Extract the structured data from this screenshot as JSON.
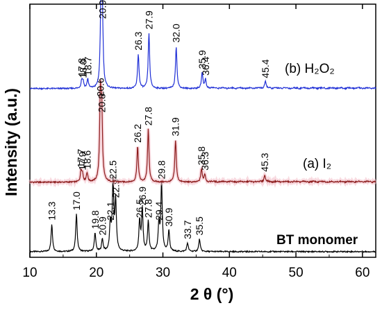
{
  "chart_data": {
    "type": "line",
    "xlabel": "2 θ (°)",
    "ylabel": "Intensity (a.u.)",
    "xlim": [
      10,
      62
    ],
    "xticks": [
      10,
      20,
      30,
      40,
      50,
      60
    ],
    "series": [
      {
        "name": "BT monomer",
        "color": "#000000",
        "peaks": [
          {
            "x": 13.3,
            "h": 0.22
          },
          {
            "x": 17.0,
            "h": 0.3
          },
          {
            "x": 19.8,
            "h": 0.15
          },
          {
            "x": 20.9,
            "h": 0.1
          },
          {
            "x": 22.1,
            "h": 0.22
          },
          {
            "x": 22.5,
            "h": 0.55
          },
          {
            "x": 22.9,
            "h": 0.4
          },
          {
            "x": 26.5,
            "h": 0.24
          },
          {
            "x": 26.9,
            "h": 0.34
          },
          {
            "x": 27.8,
            "h": 0.24
          },
          {
            "x": 29.4,
            "h": 0.22
          },
          {
            "x": 29.8,
            "h": 0.55
          },
          {
            "x": 30.9,
            "h": 0.17
          },
          {
            "x": 33.7,
            "h": 0.07
          },
          {
            "x": 35.5,
            "h": 0.1
          }
        ],
        "labels": [
          "13.3",
          "17.0",
          "19.8",
          "20.9",
          "22.1",
          "22.5",
          "22.9",
          "26.5",
          "26.9",
          "27.8",
          "29.4",
          "29.8",
          "30.9",
          "33.7",
          "35.5"
        ]
      },
      {
        "name": "(a) I2",
        "color": "#8b1a1a",
        "peaks": [
          {
            "x": 17.7,
            "h": 0.08
          },
          {
            "x": 17.9,
            "h": 0.06
          },
          {
            "x": 18.6,
            "h": 0.07
          },
          {
            "x": 20.6,
            "h": 0.62
          },
          {
            "x": 20.8,
            "h": 0.5
          },
          {
            "x": 26.2,
            "h": 0.27
          },
          {
            "x": 27.8,
            "h": 0.4
          },
          {
            "x": 31.9,
            "h": 0.32
          },
          {
            "x": 35.8,
            "h": 0.1
          },
          {
            "x": 36.3,
            "h": 0.06
          },
          {
            "x": 45.3,
            "h": 0.05
          }
        ],
        "labels": [
          "17.7",
          "17.9",
          "18.6",
          "20.6",
          "20.8",
          "26.2",
          "27.8",
          "31.9",
          "35.8",
          "36.3",
          "45.3"
        ]
      },
      {
        "name": "(b) H2O2",
        "color": "#1f2fd6",
        "peaks": [
          {
            "x": 17.8,
            "h": 0.06
          },
          {
            "x": 18.0,
            "h": 0.05
          },
          {
            "x": 18.7,
            "h": 0.07
          },
          {
            "x": 20.7,
            "h": 0.68
          },
          {
            "x": 20.9,
            "h": 0.5
          },
          {
            "x": 26.3,
            "h": 0.26
          },
          {
            "x": 27.9,
            "h": 0.42
          },
          {
            "x": 32.0,
            "h": 0.32
          },
          {
            "x": 35.9,
            "h": 0.12
          },
          {
            "x": 36.4,
            "h": 0.07
          },
          {
            "x": 45.4,
            "h": 0.05
          }
        ],
        "labels": [
          "17.8",
          "18.0",
          "18.7",
          "20.7",
          "20.9",
          "26.3",
          "27.9",
          "32.0",
          "35.9",
          "36.4",
          "45.4"
        ]
      }
    ],
    "legend_labels": [
      "(b) H₂O₂",
      "(a) I₂",
      "BT monomer"
    ]
  }
}
